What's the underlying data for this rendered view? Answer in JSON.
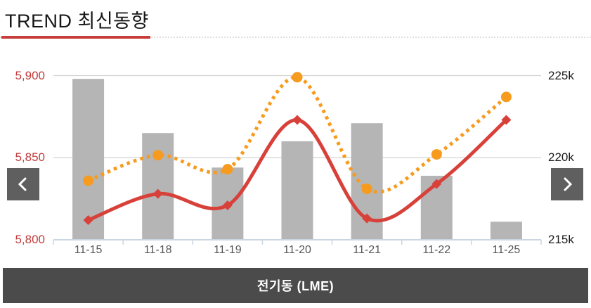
{
  "header": {
    "title": "TREND 최신동향"
  },
  "chart_data": {
    "type": "combo-bar-line",
    "categories": [
      "11-15",
      "11-18",
      "11-19",
      "11-20",
      "11-21",
      "11-22",
      "11-25"
    ],
    "bar_series": {
      "axis": "left",
      "color": "#b5b5b5",
      "values": [
        5898,
        5865,
        5844,
        5860,
        5871,
        5839,
        5811
      ]
    },
    "line_series": [
      {
        "axis": "right",
        "style": "dotted",
        "marker": "circle",
        "color": "#f79b1e",
        "values": [
          218600,
          220150,
          219300,
          224900,
          218100,
          220200,
          223700
        ]
      },
      {
        "axis": "left",
        "style": "solid",
        "marker": "diamond",
        "color": "#d8403a",
        "values": [
          5812,
          5828,
          5821,
          5873,
          5813,
          5834,
          5873
        ]
      }
    ],
    "left_axis": {
      "min": 5800,
      "max": 5900,
      "label_color": "#c23c3c",
      "ticks": [
        {
          "value": 5800,
          "label": "5,800"
        },
        {
          "value": 5850,
          "label": "5,850"
        },
        {
          "value": 5900,
          "label": "5,900"
        }
      ]
    },
    "right_axis": {
      "min": 215000,
      "max": 225000,
      "label_color": "#1b1b1b",
      "ticks": [
        {
          "value": 215000,
          "label": "215k"
        },
        {
          "value": 220000,
          "label": "220k"
        },
        {
          "value": 225000,
          "label": "225k"
        }
      ]
    },
    "grid": "horizontal",
    "legend": "none",
    "colors": {
      "gridline": "#d2d2d2",
      "x_axis_line": "#c9d6e2",
      "x_label": "#565656"
    }
  },
  "nav": {
    "prev_icon": "chevron-left",
    "next_icon": "chevron-right"
  },
  "footer": {
    "label": "전기동 (LME)"
  }
}
